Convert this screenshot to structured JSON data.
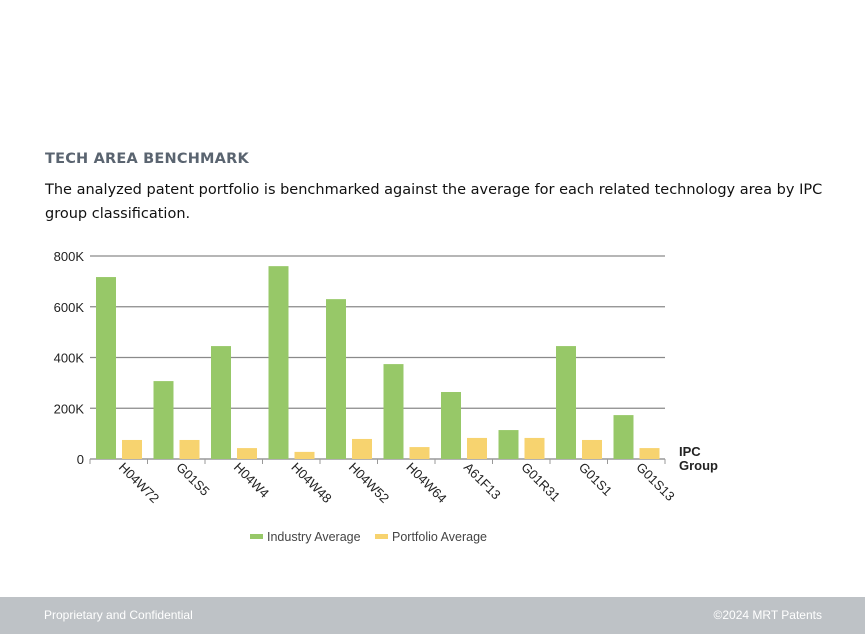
{
  "section": {
    "title": "TECH AREA BENCHMARK",
    "description": "The analyzed patent portfolio is benchmarked against the average for each related technology area by IPC group classification."
  },
  "chart_data": {
    "type": "bar",
    "title": "",
    "xlabel": "IPC Group",
    "ylabel": "",
    "ylim": [
      0,
      800000
    ],
    "yticks": [
      0,
      200000,
      400000,
      600000,
      800000
    ],
    "ytick_labels": [
      "0",
      "200K",
      "400K",
      "600K",
      "800K"
    ],
    "grid": true,
    "legend_position": "bottom",
    "categories": [
      "H04W72",
      "G01S5",
      "H04W4",
      "H04W48",
      "H04W52",
      "H04W64",
      "A61F13",
      "G01R31",
      "G01S1",
      "G01S13"
    ],
    "series": [
      {
        "name": "Industry Average",
        "color": "#97c868",
        "values": [
          717000,
          307000,
          445000,
          760000,
          630000,
          374000,
          264000,
          114000,
          445000,
          173000
        ]
      },
      {
        "name": "Portfolio Average",
        "color": "#f7d36f",
        "values": [
          75000,
          75000,
          43000,
          28000,
          79000,
          47000,
          83000,
          83000,
          75000,
          43000
        ]
      }
    ]
  },
  "footer": {
    "left": "Proprietary and Confidential",
    "right": "©2024 MRT Patents"
  }
}
